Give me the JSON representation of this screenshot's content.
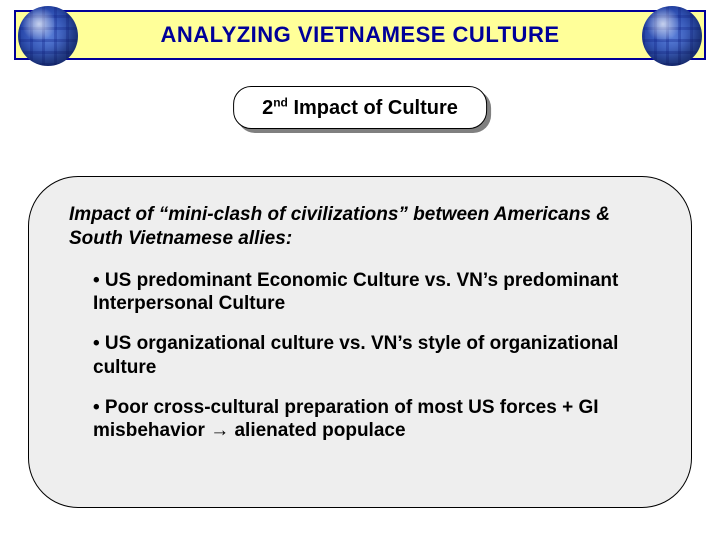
{
  "colors": {
    "title_bg": "#ffff99",
    "title_border": "#000099",
    "title_text": "#000099",
    "content_bg": "#eeeeee",
    "content_border": "#000000",
    "subtitle_shadow": "#808080",
    "page_bg": "#ffffff"
  },
  "title": "ANALYZING VIETNAMESE CULTURE",
  "subtitle": {
    "ordinal": "2",
    "suffix": "nd",
    "rest": " Impact of Culture"
  },
  "content": {
    "intro": "Impact of “mini-clash of civilizations” between Americans & South Vietnamese allies:",
    "bullets": [
      "• US predominant Economic Culture vs. VN’s predominant Interpersonal Culture",
      "• US organizational culture vs. VN’s style of organizational culture",
      "• Poor cross-cultural preparation of most US forces + GI misbehavior → alienated populace"
    ]
  }
}
